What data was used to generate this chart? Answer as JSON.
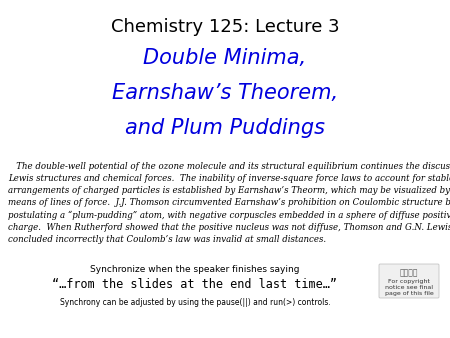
{
  "background_color": "#ffffff",
  "title_line1": "Chemistry 125: Lecture 3",
  "title_line1_color": "#000000",
  "title_line1_fontsize": 13,
  "title_line2": "Double Minima,",
  "title_line3": "Earnshaw’s Theorem,",
  "title_line4": "and Plum Puddings",
  "title_blue_color": "#0000dd",
  "title_blue_fontsize": 15,
  "body_text": "   The double-well potential of the ozone molecule and its structural equilibrium continues the discussion of\nLewis structures and chemical forces.  The inability of inverse-square force laws to account for stable\narrangements of charged particles is established by Earnshaw’s Theorm, which may be visualized by\nmeans of lines of force.  J.J. Thomson circumvented Earnshaw’s prohibition on Coulombic structure by\npostulating a “plum-pudding” atom, with negative corpuscles embedded in a sphere of diffuse positive\ncharge.  When Rutherford showed that the positive nucleus was not diffuse, Thomson and G.N. Lewis\nconcluded incorrectly that Coulomb’s law was invalid at small distances.",
  "body_fontsize": 6.2,
  "sync_line1": "Synchronize when the speaker finishes saying",
  "sync_line2": "“…from the slides at the end last time…”",
  "sync_line3": "Synchrony can be adjusted by using the pause(||) and run(>) controls.",
  "sync_fontsize": 6.5,
  "sync_line2_fontsize": 8.5,
  "copyright_text": "For copyright\nnotice see final\npage of this file",
  "copyright_fontsize": 4.5
}
